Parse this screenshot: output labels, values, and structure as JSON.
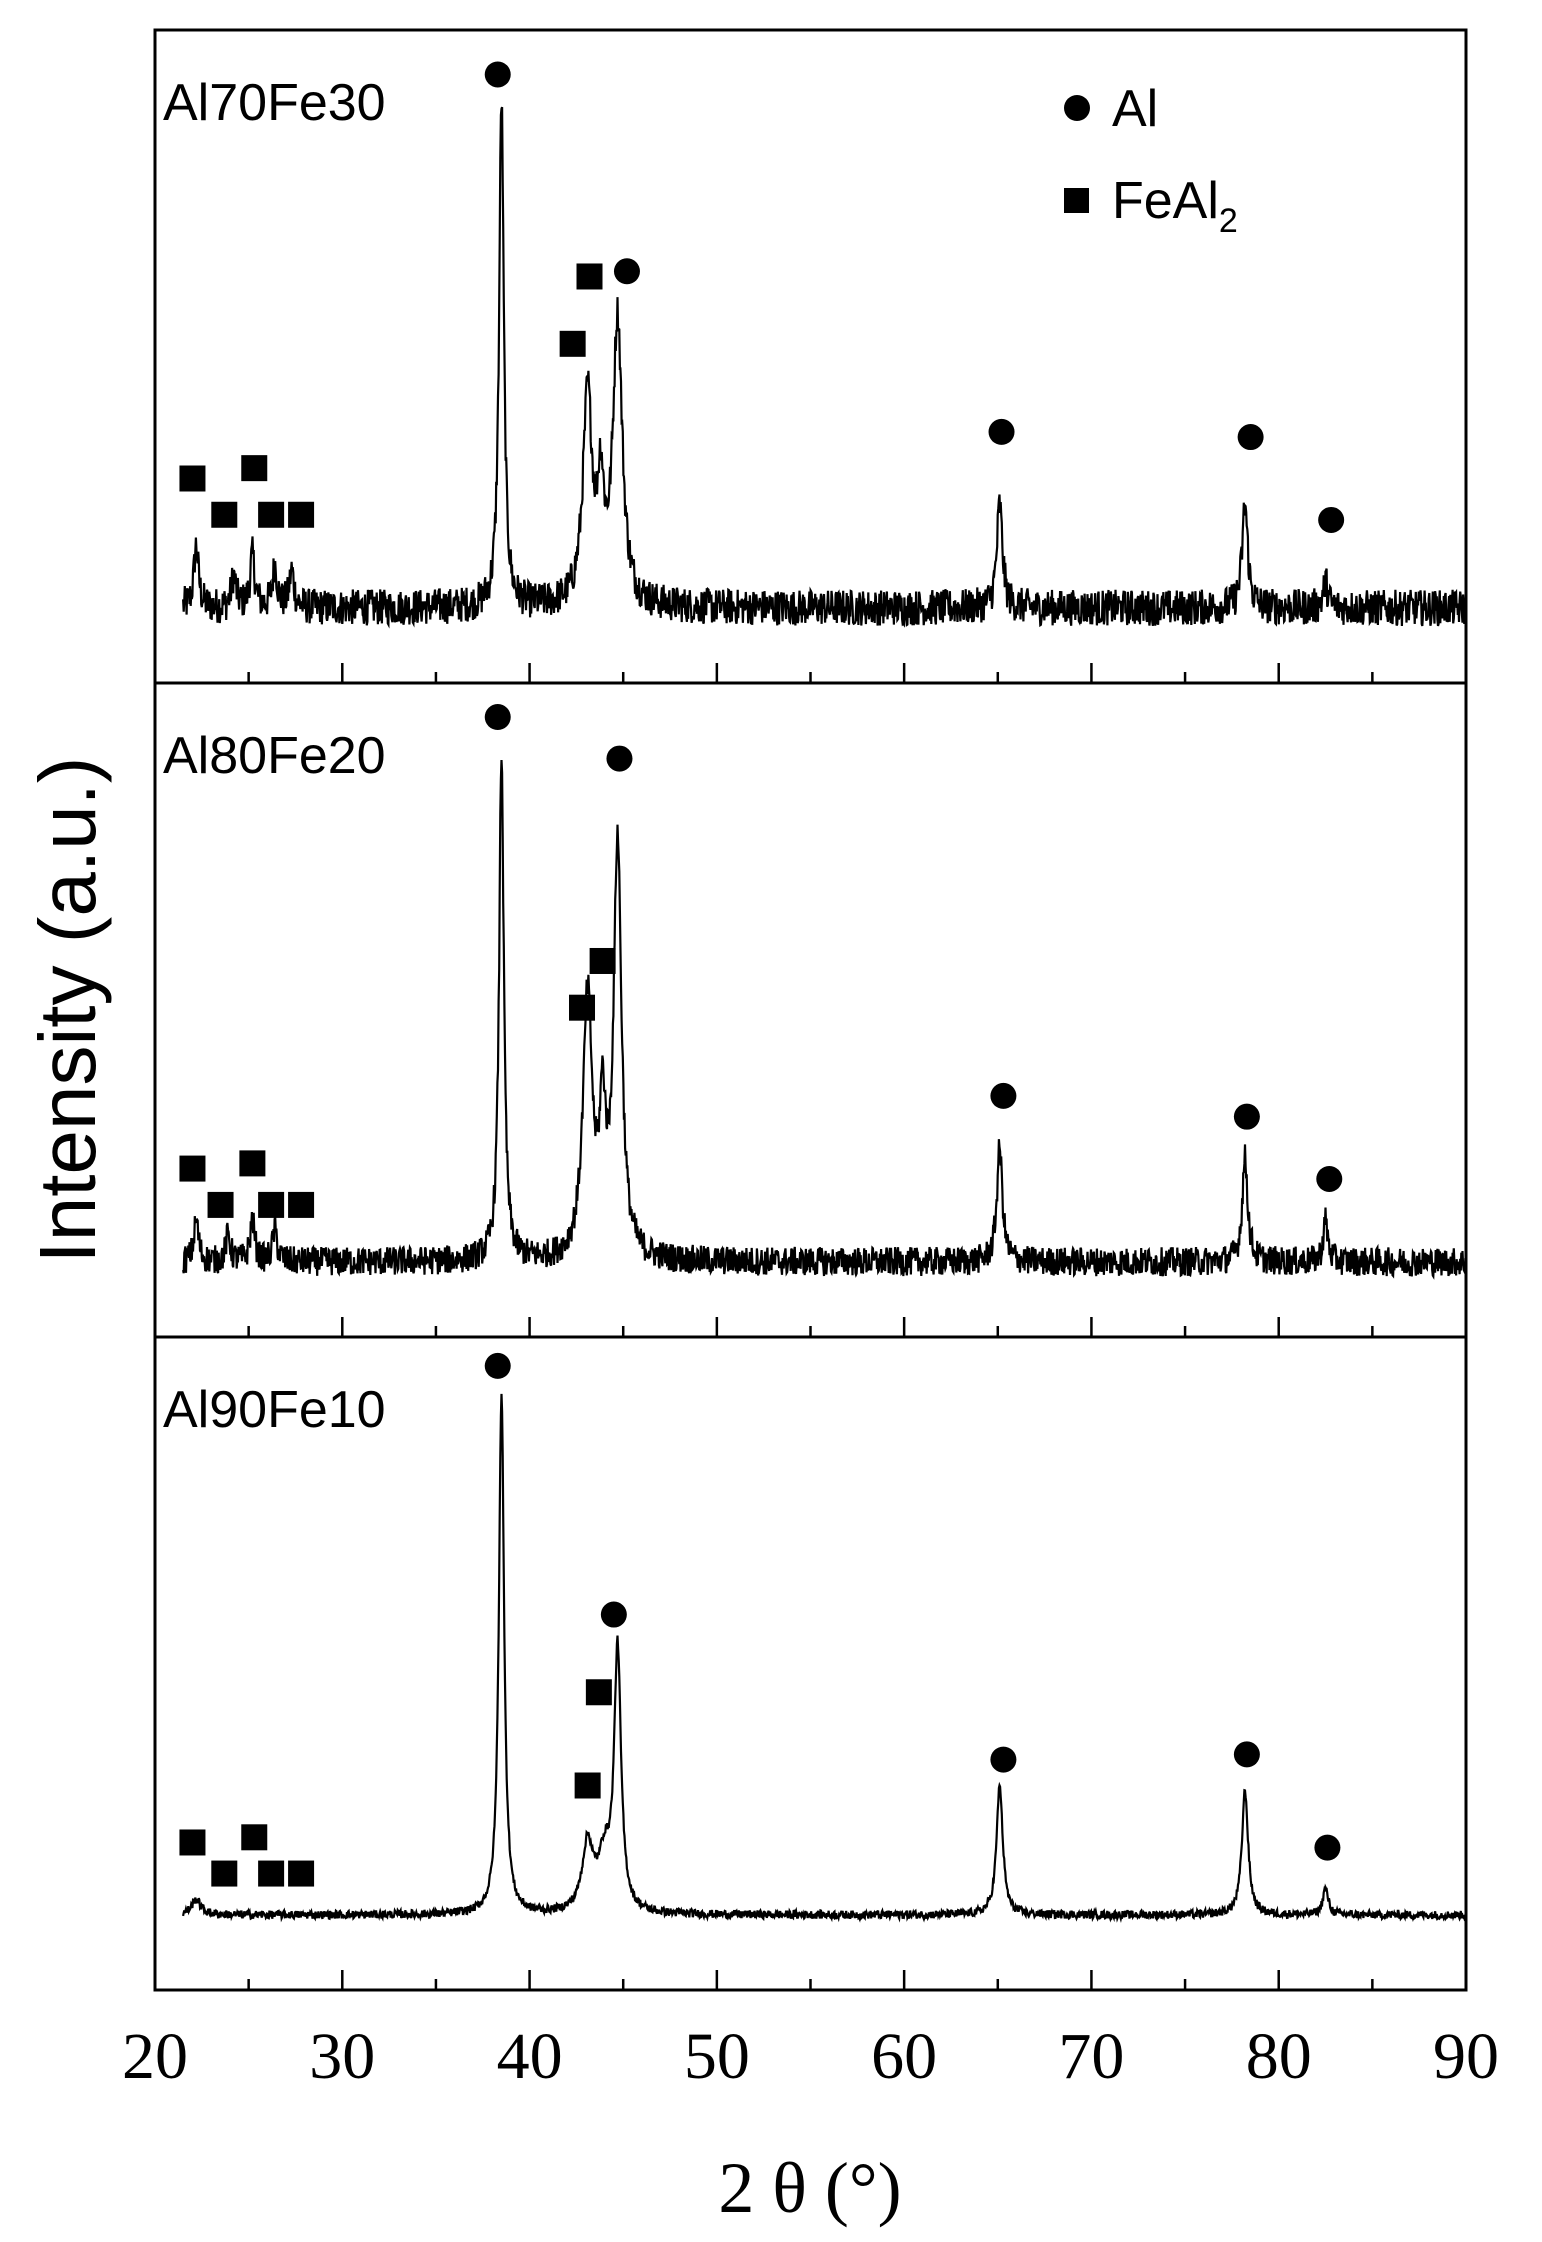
{
  "chart_data": {
    "type": "line",
    "xlabel": "2 θ (°)",
    "ylabel": "Intensity (a.u.)",
    "xlim": [
      20,
      90
    ],
    "xticks": [
      20,
      30,
      40,
      50,
      60,
      70,
      80,
      90
    ],
    "grid": false,
    "legend": {
      "placement": "top-right",
      "entries": [
        {
          "marker": "circle",
          "label": "Al",
          "sub": ""
        },
        {
          "marker": "square",
          "label": "FeAl",
          "sub": "2"
        }
      ]
    },
    "panels": [
      {
        "name": "Al70Fe30",
        "peaks": [
          {
            "x": 22.2,
            "h": 0.12,
            "w": 0.15
          },
          {
            "x": 24.2,
            "h": 0.06,
            "w": 0.15
          },
          {
            "x": 25.2,
            "h": 0.1,
            "w": 0.15
          },
          {
            "x": 26.4,
            "h": 0.08,
            "w": 0.15
          },
          {
            "x": 27.3,
            "h": 0.07,
            "w": 0.15
          },
          {
            "x": 38.5,
            "h": 0.98,
            "w": 0.15
          },
          {
            "x": 43.1,
            "h": 0.4,
            "w": 0.3
          },
          {
            "x": 43.8,
            "h": 0.2,
            "w": 0.2
          },
          {
            "x": 44.7,
            "h": 0.55,
            "w": 0.3
          },
          {
            "x": 65.1,
            "h": 0.2,
            "w": 0.18
          },
          {
            "x": 78.2,
            "h": 0.2,
            "w": 0.18
          },
          {
            "x": 82.5,
            "h": 0.05,
            "w": 0.15
          }
        ],
        "noise": 0.035,
        "max_intensity": 1.0,
        "markers": [
          {
            "type": "square",
            "x": 22.0,
            "y": 0.25
          },
          {
            "type": "square",
            "x": 23.7,
            "y": 0.18
          },
          {
            "type": "square",
            "x": 25.3,
            "y": 0.27
          },
          {
            "type": "square",
            "x": 26.2,
            "y": 0.18
          },
          {
            "type": "square",
            "x": 27.8,
            "y": 0.18
          },
          {
            "type": "circle",
            "x": 38.3,
            "y": 1.03
          },
          {
            "type": "square",
            "x": 42.3,
            "y": 0.51
          },
          {
            "type": "square",
            "x": 43.2,
            "y": 0.64
          },
          {
            "type": "circle",
            "x": 45.2,
            "y": 0.65
          },
          {
            "type": "circle",
            "x": 65.2,
            "y": 0.34
          },
          {
            "type": "circle",
            "x": 78.5,
            "y": 0.33
          },
          {
            "type": "circle",
            "x": 82.8,
            "y": 0.17
          }
        ]
      },
      {
        "name": "Al80Fe20",
        "peaks": [
          {
            "x": 22.2,
            "h": 0.08,
            "w": 0.15
          },
          {
            "x": 23.9,
            "h": 0.05,
            "w": 0.15
          },
          {
            "x": 25.2,
            "h": 0.08,
            "w": 0.15
          },
          {
            "x": 26.4,
            "h": 0.06,
            "w": 0.15
          },
          {
            "x": 38.5,
            "h": 0.98,
            "w": 0.15
          },
          {
            "x": 43.1,
            "h": 0.5,
            "w": 0.3
          },
          {
            "x": 43.9,
            "h": 0.25,
            "w": 0.2
          },
          {
            "x": 44.7,
            "h": 0.8,
            "w": 0.25
          },
          {
            "x": 65.1,
            "h": 0.22,
            "w": 0.18
          },
          {
            "x": 78.2,
            "h": 0.2,
            "w": 0.18
          },
          {
            "x": 82.5,
            "h": 0.08,
            "w": 0.15
          }
        ],
        "noise": 0.028,
        "max_intensity": 1.0,
        "markers": [
          {
            "type": "square",
            "x": 22.0,
            "y": 0.18
          },
          {
            "type": "square",
            "x": 23.5,
            "y": 0.11
          },
          {
            "type": "square",
            "x": 25.2,
            "y": 0.19
          },
          {
            "type": "square",
            "x": 26.2,
            "y": 0.11
          },
          {
            "type": "square",
            "x": 27.8,
            "y": 0.11
          },
          {
            "type": "circle",
            "x": 38.3,
            "y": 1.05
          },
          {
            "type": "square",
            "x": 42.8,
            "y": 0.49
          },
          {
            "type": "square",
            "x": 43.9,
            "y": 0.58
          },
          {
            "type": "circle",
            "x": 44.8,
            "y": 0.97
          },
          {
            "type": "circle",
            "x": 65.3,
            "y": 0.32
          },
          {
            "type": "circle",
            "x": 78.3,
            "y": 0.28
          },
          {
            "type": "circle",
            "x": 82.7,
            "y": 0.16
          }
        ]
      },
      {
        "name": "Al90Fe10",
        "peaks": [
          {
            "x": 22.2,
            "h": 0.03,
            "w": 0.3
          },
          {
            "x": 38.5,
            "h": 1.0,
            "w": 0.17
          },
          {
            "x": 43.1,
            "h": 0.13,
            "w": 0.35
          },
          {
            "x": 44.0,
            "h": 0.1,
            "w": 0.4
          },
          {
            "x": 44.7,
            "h": 0.5,
            "w": 0.22
          },
          {
            "x": 65.1,
            "h": 0.25,
            "w": 0.2
          },
          {
            "x": 78.2,
            "h": 0.24,
            "w": 0.2
          },
          {
            "x": 82.5,
            "h": 0.05,
            "w": 0.18
          }
        ],
        "noise": 0.008,
        "max_intensity": 1.0,
        "markers": [
          {
            "type": "square",
            "x": 22.0,
            "y": 0.14
          },
          {
            "type": "square",
            "x": 23.7,
            "y": 0.08
          },
          {
            "type": "square",
            "x": 25.3,
            "y": 0.15
          },
          {
            "type": "square",
            "x": 26.2,
            "y": 0.08
          },
          {
            "type": "square",
            "x": 27.8,
            "y": 0.08
          },
          {
            "type": "circle",
            "x": 38.3,
            "y": 1.06
          },
          {
            "type": "square",
            "x": 43.1,
            "y": 0.25
          },
          {
            "type": "square",
            "x": 43.7,
            "y": 0.43
          },
          {
            "type": "circle",
            "x": 44.5,
            "y": 0.58
          },
          {
            "type": "circle",
            "x": 65.3,
            "y": 0.3
          },
          {
            "type": "circle",
            "x": 78.3,
            "y": 0.31
          },
          {
            "type": "circle",
            "x": 82.6,
            "y": 0.13
          }
        ]
      }
    ]
  }
}
